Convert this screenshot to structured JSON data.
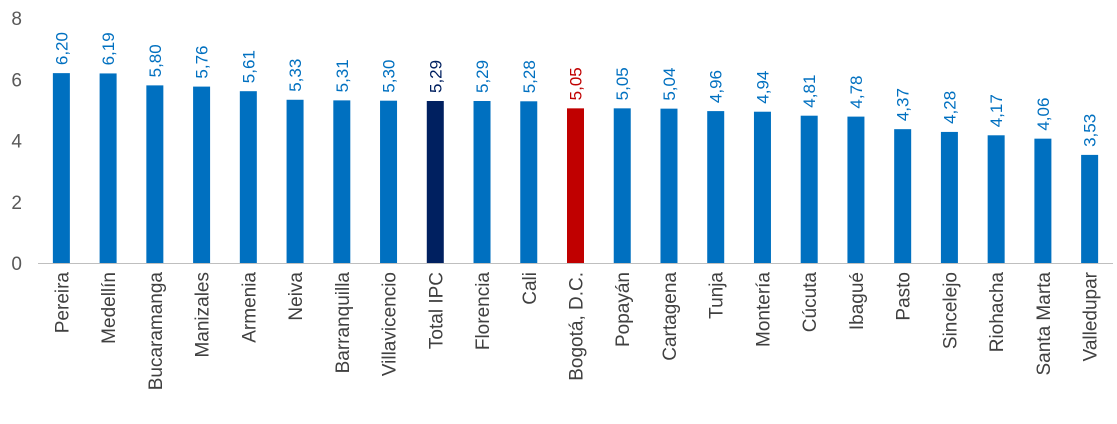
{
  "chart_data": {
    "type": "bar",
    "categories": [
      "Pereira",
      "Medellín",
      "Bucaramanga",
      "Manizales",
      "Armenia",
      "Neiva",
      "Barranquilla",
      "Villavicencio",
      "Total IPC",
      "Florencia",
      "Cali",
      "Bogotá, D.C.",
      "Popayán",
      "Cartagena",
      "Tunja",
      "Montería",
      "Cúcuta",
      "Ibagué",
      "Pasto",
      "Sincelejo",
      "Riohacha",
      "Santa Marta",
      "Valledupar"
    ],
    "values": [
      6.2,
      6.19,
      5.8,
      5.76,
      5.61,
      5.33,
      5.31,
      5.3,
      5.29,
      5.29,
      5.28,
      5.05,
      5.05,
      5.04,
      4.96,
      4.94,
      4.81,
      4.78,
      4.37,
      4.28,
      4.17,
      4.06,
      3.53
    ],
    "value_labels": [
      "6,20",
      "6,19",
      "5,80",
      "5,76",
      "5,61",
      "5,33",
      "5,31",
      "5,30",
      "5,29",
      "5,29",
      "5,28",
      "5,05",
      "5,05",
      "5,04",
      "4,96",
      "4,94",
      "4,81",
      "4,78",
      "4,37",
      "4,28",
      "4,17",
      "4,06",
      "3,53"
    ],
    "yticks": [
      "0",
      "2",
      "4",
      "6",
      "8"
    ],
    "ylim": [
      0,
      8
    ],
    "grid": false,
    "colors": {
      "default": "#0070C0",
      "total": "#002060",
      "highlight": "#C00000",
      "axis": "#BFBFBF"
    },
    "bar_colors": [
      "default",
      "default",
      "default",
      "default",
      "default",
      "default",
      "default",
      "default",
      "total",
      "default",
      "default",
      "highlight",
      "default",
      "default",
      "default",
      "default",
      "default",
      "default",
      "default",
      "default",
      "default",
      "default",
      "default"
    ]
  }
}
